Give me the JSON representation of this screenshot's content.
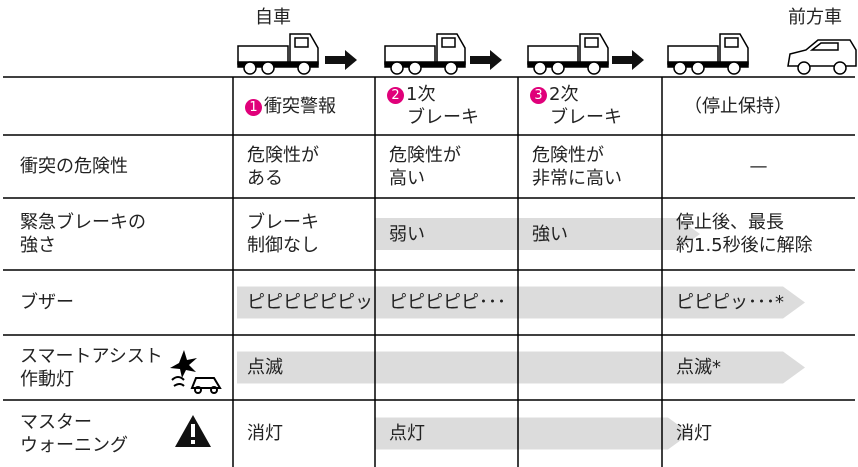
{
  "top_labels": {
    "own_vehicle": "自車",
    "front_vehicle": "前方車"
  },
  "table": {
    "stages": [
      {
        "num": "1",
        "lines": [
          "衝突警報"
        ]
      },
      {
        "num": "2",
        "lines": [
          "1次",
          "ブレーキ"
        ]
      },
      {
        "num": "3",
        "lines": [
          "2次",
          "ブレーキ"
        ]
      },
      {
        "lines": [
          "（停止保持）"
        ]
      }
    ],
    "rows": [
      {
        "label": [
          "衝突の危険性"
        ],
        "cells": [
          [
            "危険性が",
            "ある"
          ],
          [
            "危険性が",
            "高い"
          ],
          [
            "危険性が",
            "非常に高い"
          ],
          [
            "—"
          ]
        ]
      },
      {
        "label": [
          "緊急ブレーキの",
          "強さ"
        ],
        "cells": [
          [
            "ブレーキ",
            "制御なし"
          ],
          [
            "弱い"
          ],
          [
            "強い"
          ],
          [
            "停止後、最長",
            "約1.5秒後に解除"
          ]
        ]
      },
      {
        "label": [
          "ブザー"
        ],
        "cells": [
          [
            "ピピピピピピッ"
          ],
          [
            "ピピピピピ･･･"
          ],
          null,
          [
            "ピピピッ･･･*"
          ]
        ]
      },
      {
        "label": [
          "スマートアシスト",
          "作動灯"
        ],
        "cells": [
          [
            "点滅"
          ],
          null,
          null,
          [
            "点滅*"
          ]
        ]
      },
      {
        "label": [
          "マスター",
          "ウォーニング"
        ],
        "cells": [
          [
            "消灯"
          ],
          [
            "点灯"
          ],
          null,
          [
            "消灯"
          ]
        ]
      }
    ]
  }
}
